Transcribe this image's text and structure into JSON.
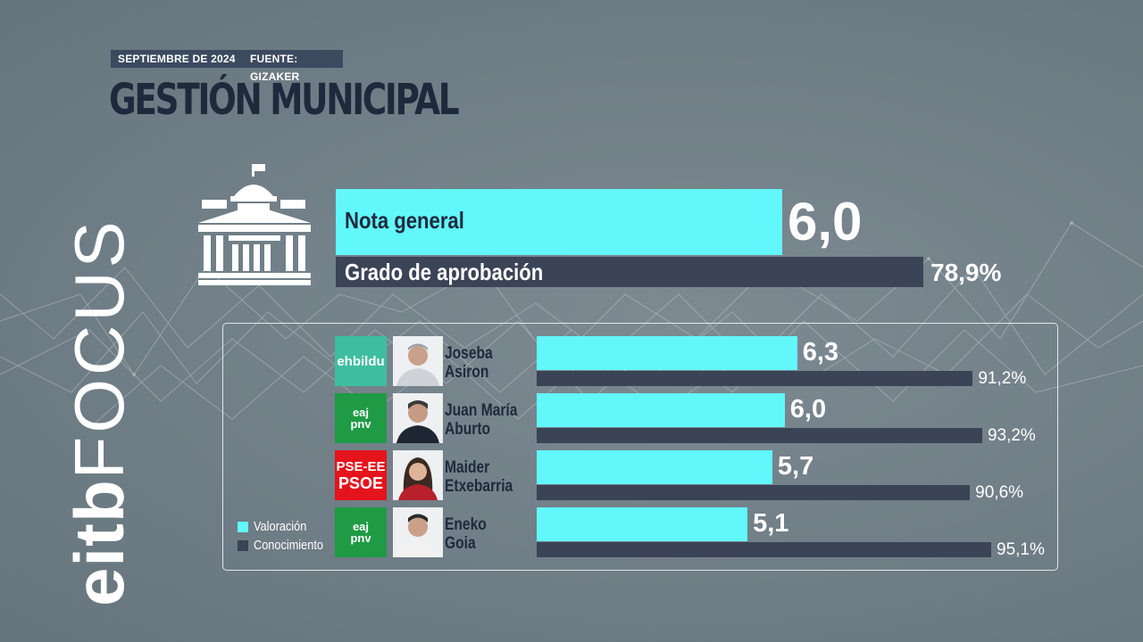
{
  "header": {
    "date": "SEPTIEMBRE DE 2024",
    "source": "FUENTE: GIZAKER",
    "title": "GESTIÓN MUNICIPAL"
  },
  "brand": {
    "part1": "eitb",
    "part2": "FOCUS"
  },
  "colors": {
    "valoracion": "#62f7fb",
    "conocimiento": "#3b4356",
    "title": "#1e2a3c",
    "bildu": "#3dbea0",
    "pnv": "#1f9a45",
    "psoe": "#e5131c"
  },
  "icons": {
    "building": "town-hall-icon"
  },
  "chart_data": [
    {
      "type": "bar",
      "categories": [
        "Nota general",
        "Grado de aprobación"
      ],
      "values": [
        6.0,
        78.9
      ],
      "value_labels": [
        "6,0",
        "78,9%"
      ],
      "units": [
        "score 0-10",
        "percent"
      ]
    },
    {
      "type": "bar",
      "orientation": "horizontal",
      "categories": [
        "Joseba Asiron",
        "Juan María Aburto",
        "Maider Etxebarria",
        "Eneko Goia"
      ],
      "parties": [
        "ehbildu",
        "eaj pnv",
        "PSE-EE PSOE",
        "eaj pnv"
      ],
      "series": [
        {
          "name": "Valoración",
          "values": [
            6.3,
            6.0,
            5.7,
            5.1
          ],
          "labels": [
            "6,3",
            "6,0",
            "5,7",
            "5,1"
          ]
        },
        {
          "name": "Conocimiento",
          "values": [
            91.2,
            93.2,
            90.6,
            95.1
          ],
          "labels": [
            "91,2%",
            "93,2%",
            "90,6%",
            "95,1%"
          ]
        }
      ],
      "legend_position": "bottom-left"
    }
  ],
  "candidates": [
    {
      "first": "Joseba",
      "last": "Asiron",
      "party_logo": "ehbildu",
      "logo_lines": [
        "ehbildu"
      ]
    },
    {
      "first": "Juan María",
      "last": "Aburto",
      "party_logo": "pnv",
      "logo_lines": [
        "eaj",
        "pnv"
      ]
    },
    {
      "first": "Maider",
      "last": "Etxebarria",
      "party_logo": "psoe",
      "logo_lines": [
        "PSE-EE",
        "PSOE"
      ]
    },
    {
      "first": "Eneko",
      "last": "Goia",
      "party_logo": "pnv",
      "logo_lines": [
        "eaj",
        "pnv"
      ]
    }
  ],
  "legend": {
    "valoracion": "Valoración",
    "conocimiento": "Conocimiento"
  }
}
